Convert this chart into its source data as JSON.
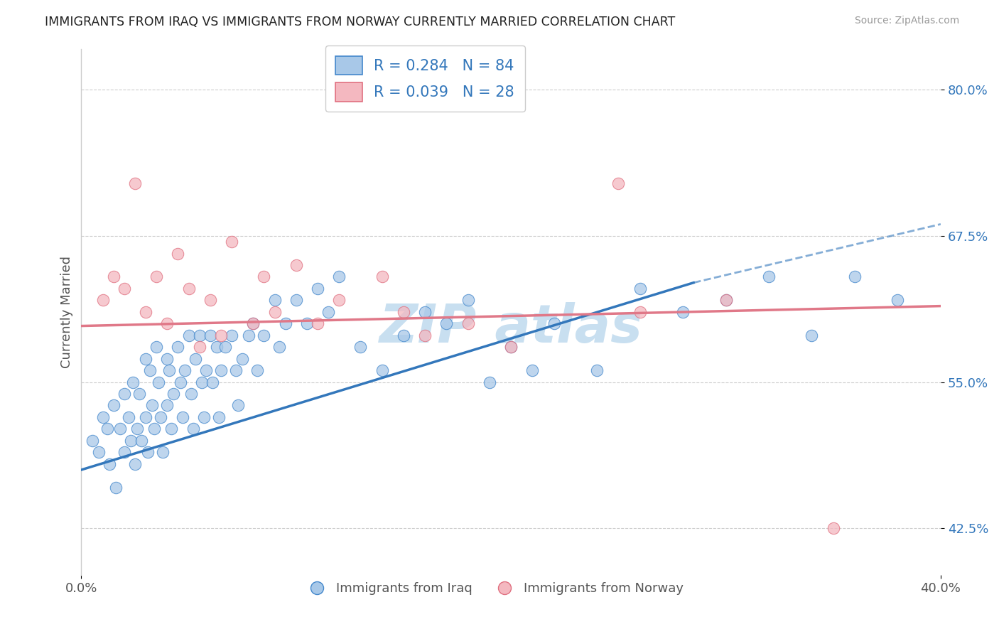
{
  "title": "IMMIGRANTS FROM IRAQ VS IMMIGRANTS FROM NORWAY CURRENTLY MARRIED CORRELATION CHART",
  "source": "Source: ZipAtlas.com",
  "xlabel_bottom_left": "0.0%",
  "xlabel_bottom_right": "40.0%",
  "ylabel": "Currently Married",
  "y_ticks": [
    "42.5%",
    "55.0%",
    "67.5%",
    "80.0%"
  ],
  "y_tick_values": [
    0.425,
    0.55,
    0.675,
    0.8
  ],
  "x_range": [
    0.0,
    0.4
  ],
  "y_range": [
    0.385,
    0.835
  ],
  "legend_iraq": "R = 0.284   N = 84",
  "legend_norway": "R = 0.039   N = 28",
  "legend_label_iraq": "Immigrants from Iraq",
  "legend_label_norway": "Immigrants from Norway",
  "color_iraq": "#a8c8e8",
  "color_norway": "#f4b8c0",
  "color_iraq_edge": "#4488cc",
  "color_norway_edge": "#e07080",
  "color_iraq_line": "#3377bb",
  "color_norway_line": "#e07888",
  "watermark_color": "#c8dff0",
  "iraq_x": [
    0.005,
    0.008,
    0.01,
    0.012,
    0.013,
    0.015,
    0.016,
    0.018,
    0.02,
    0.02,
    0.022,
    0.023,
    0.024,
    0.025,
    0.026,
    0.027,
    0.028,
    0.03,
    0.03,
    0.031,
    0.032,
    0.033,
    0.034,
    0.035,
    0.036,
    0.037,
    0.038,
    0.04,
    0.04,
    0.041,
    0.042,
    0.043,
    0.045,
    0.046,
    0.047,
    0.048,
    0.05,
    0.051,
    0.052,
    0.053,
    0.055,
    0.056,
    0.057,
    0.058,
    0.06,
    0.061,
    0.063,
    0.064,
    0.065,
    0.067,
    0.07,
    0.072,
    0.073,
    0.075,
    0.078,
    0.08,
    0.082,
    0.085,
    0.09,
    0.092,
    0.095,
    0.1,
    0.105,
    0.11,
    0.115,
    0.12,
    0.13,
    0.14,
    0.15,
    0.16,
    0.17,
    0.18,
    0.19,
    0.2,
    0.21,
    0.22,
    0.24,
    0.26,
    0.28,
    0.3,
    0.32,
    0.34,
    0.36,
    0.38
  ],
  "iraq_y": [
    0.5,
    0.49,
    0.52,
    0.51,
    0.48,
    0.53,
    0.46,
    0.51,
    0.54,
    0.49,
    0.52,
    0.5,
    0.55,
    0.48,
    0.51,
    0.54,
    0.5,
    0.57,
    0.52,
    0.49,
    0.56,
    0.53,
    0.51,
    0.58,
    0.55,
    0.52,
    0.49,
    0.57,
    0.53,
    0.56,
    0.51,
    0.54,
    0.58,
    0.55,
    0.52,
    0.56,
    0.59,
    0.54,
    0.51,
    0.57,
    0.59,
    0.55,
    0.52,
    0.56,
    0.59,
    0.55,
    0.58,
    0.52,
    0.56,
    0.58,
    0.59,
    0.56,
    0.53,
    0.57,
    0.59,
    0.6,
    0.56,
    0.59,
    0.62,
    0.58,
    0.6,
    0.62,
    0.6,
    0.63,
    0.61,
    0.64,
    0.58,
    0.56,
    0.59,
    0.61,
    0.6,
    0.62,
    0.55,
    0.58,
    0.56,
    0.6,
    0.56,
    0.63,
    0.61,
    0.62,
    0.64,
    0.59,
    0.64,
    0.62
  ],
  "iraq_line_x0": 0.0,
  "iraq_line_x1": 0.285,
  "iraq_line_x_dash0": 0.285,
  "iraq_line_x_dash1": 0.4,
  "iraq_line_y0": 0.475,
  "iraq_line_y1": 0.635,
  "iraq_line_y_dash1": 0.685,
  "norway_x": [
    0.01,
    0.015,
    0.02,
    0.025,
    0.03,
    0.035,
    0.04,
    0.045,
    0.05,
    0.055,
    0.06,
    0.065,
    0.07,
    0.08,
    0.085,
    0.09,
    0.1,
    0.11,
    0.12,
    0.14,
    0.15,
    0.16,
    0.18,
    0.2,
    0.25,
    0.26,
    0.3,
    0.35
  ],
  "norway_y": [
    0.62,
    0.64,
    0.63,
    0.72,
    0.61,
    0.64,
    0.6,
    0.66,
    0.63,
    0.58,
    0.62,
    0.59,
    0.67,
    0.6,
    0.64,
    0.61,
    0.65,
    0.6,
    0.62,
    0.64,
    0.61,
    0.59,
    0.6,
    0.58,
    0.72,
    0.61,
    0.62,
    0.425
  ],
  "norway_line_x0": 0.0,
  "norway_line_x1": 0.4,
  "norway_line_y0": 0.598,
  "norway_line_y1": 0.615
}
